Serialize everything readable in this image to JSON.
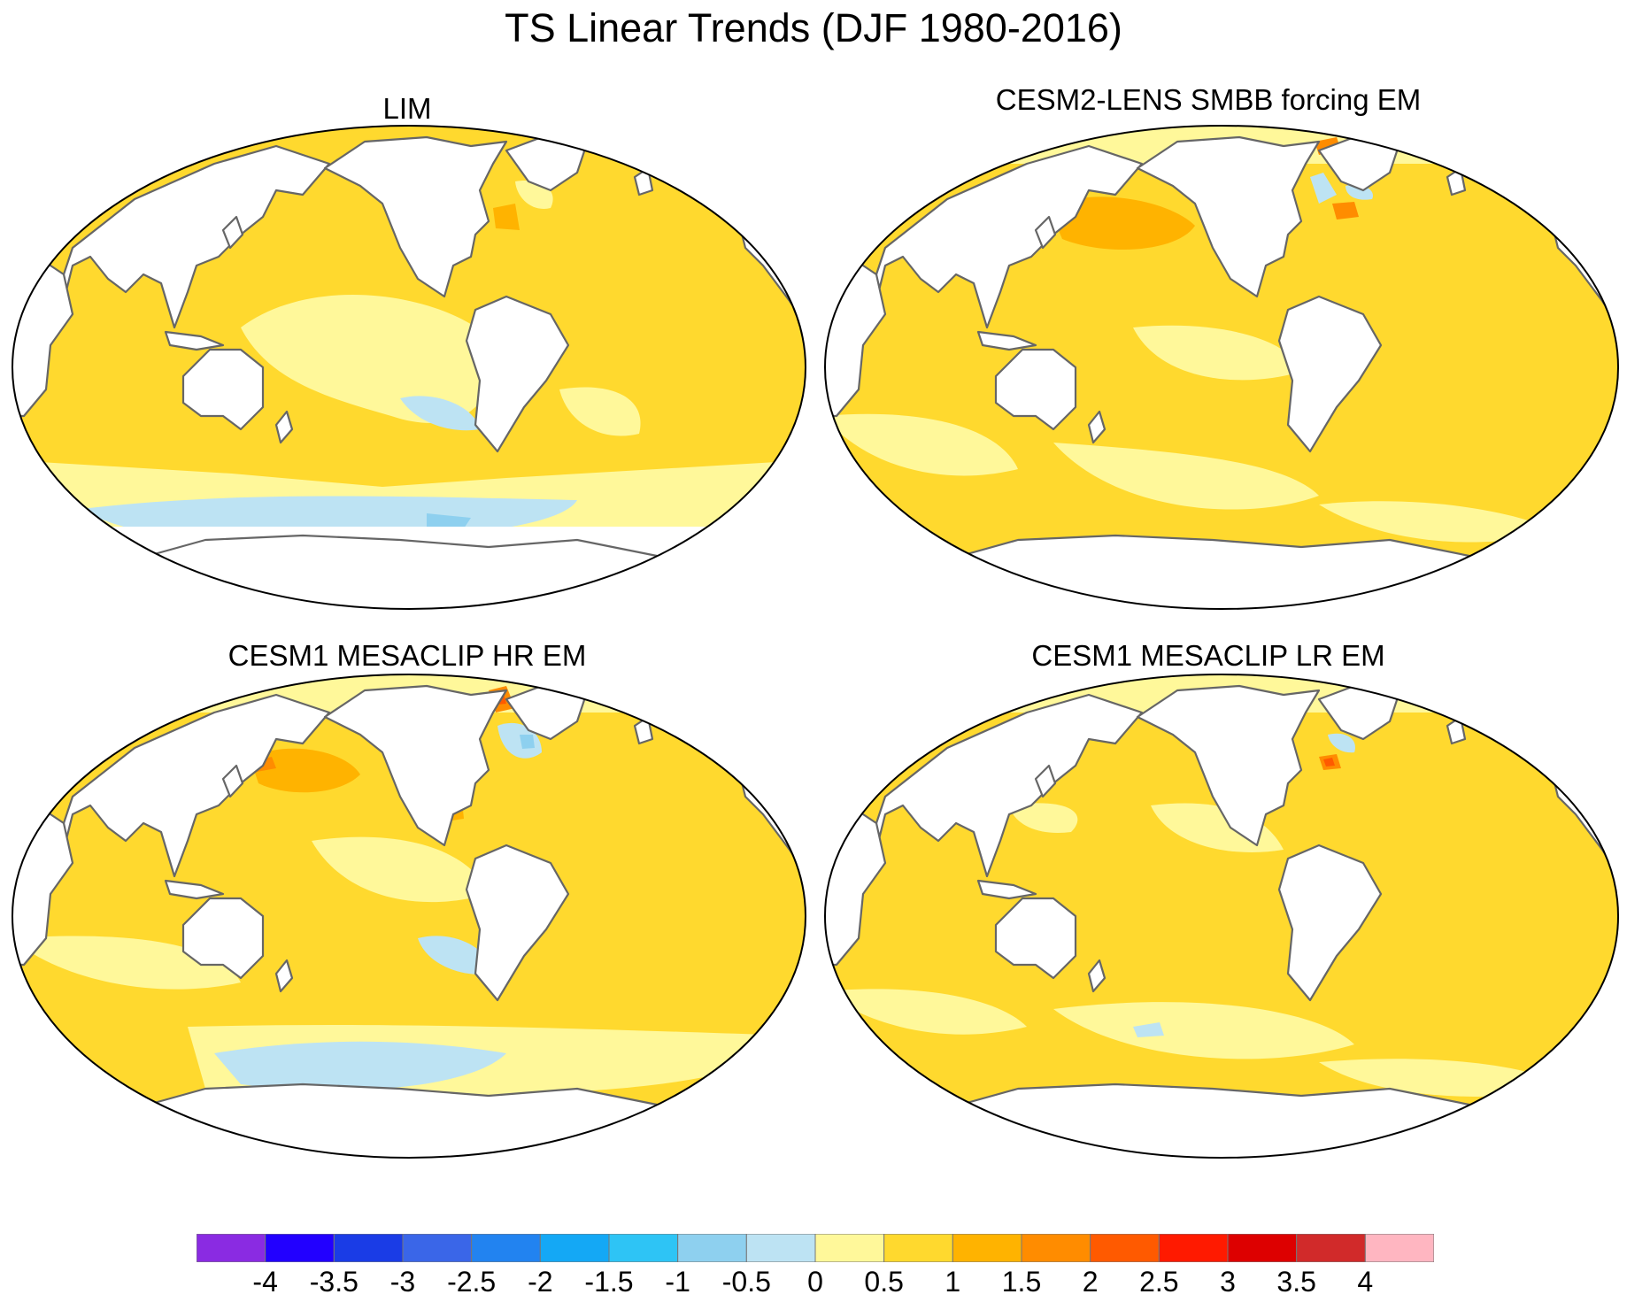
{
  "title": "TS Linear Trends (DJF 1980-2016)",
  "panels": [
    {
      "title": "LIM"
    },
    {
      "title": "CESM2-LENS SMBB forcing EM"
    },
    {
      "title": "CESM1 MESACLIP HR EM"
    },
    {
      "title": "CESM1 MESACLIP LR EM"
    }
  ],
  "colorbar": {
    "labels": [
      "-4",
      "-3.5",
      "-3",
      "-2.5",
      "-2",
      "-1.5",
      "-1",
      "-0.5",
      "0",
      "0.5",
      "1",
      "1.5",
      "2",
      "2.5",
      "3",
      "3.5",
      "4"
    ],
    "colors": [
      "#8a2be2",
      "#2200ff",
      "#1a3ce6",
      "#3a66e8",
      "#2283f0",
      "#14a8f5",
      "#2ec4f5",
      "#8ed0ef",
      "#bde3f3",
      "#fff89a",
      "#ffd92e",
      "#ffb300",
      "#ff8c00",
      "#ff5a00",
      "#ff1a00",
      "#dd0000",
      "#d12a2a",
      "#ffb6c1"
    ]
  },
  "map_colors": {
    "land": "#ffffff",
    "coast": "#666666",
    "ocean_base": "#ffd92e",
    "light_warm": "#fff89a",
    "warm": "#ffb300",
    "hot": "#ff8c00",
    "very_hot": "#ff5a00",
    "cool": "#bde3f3",
    "cooler": "#8ed0ef"
  }
}
